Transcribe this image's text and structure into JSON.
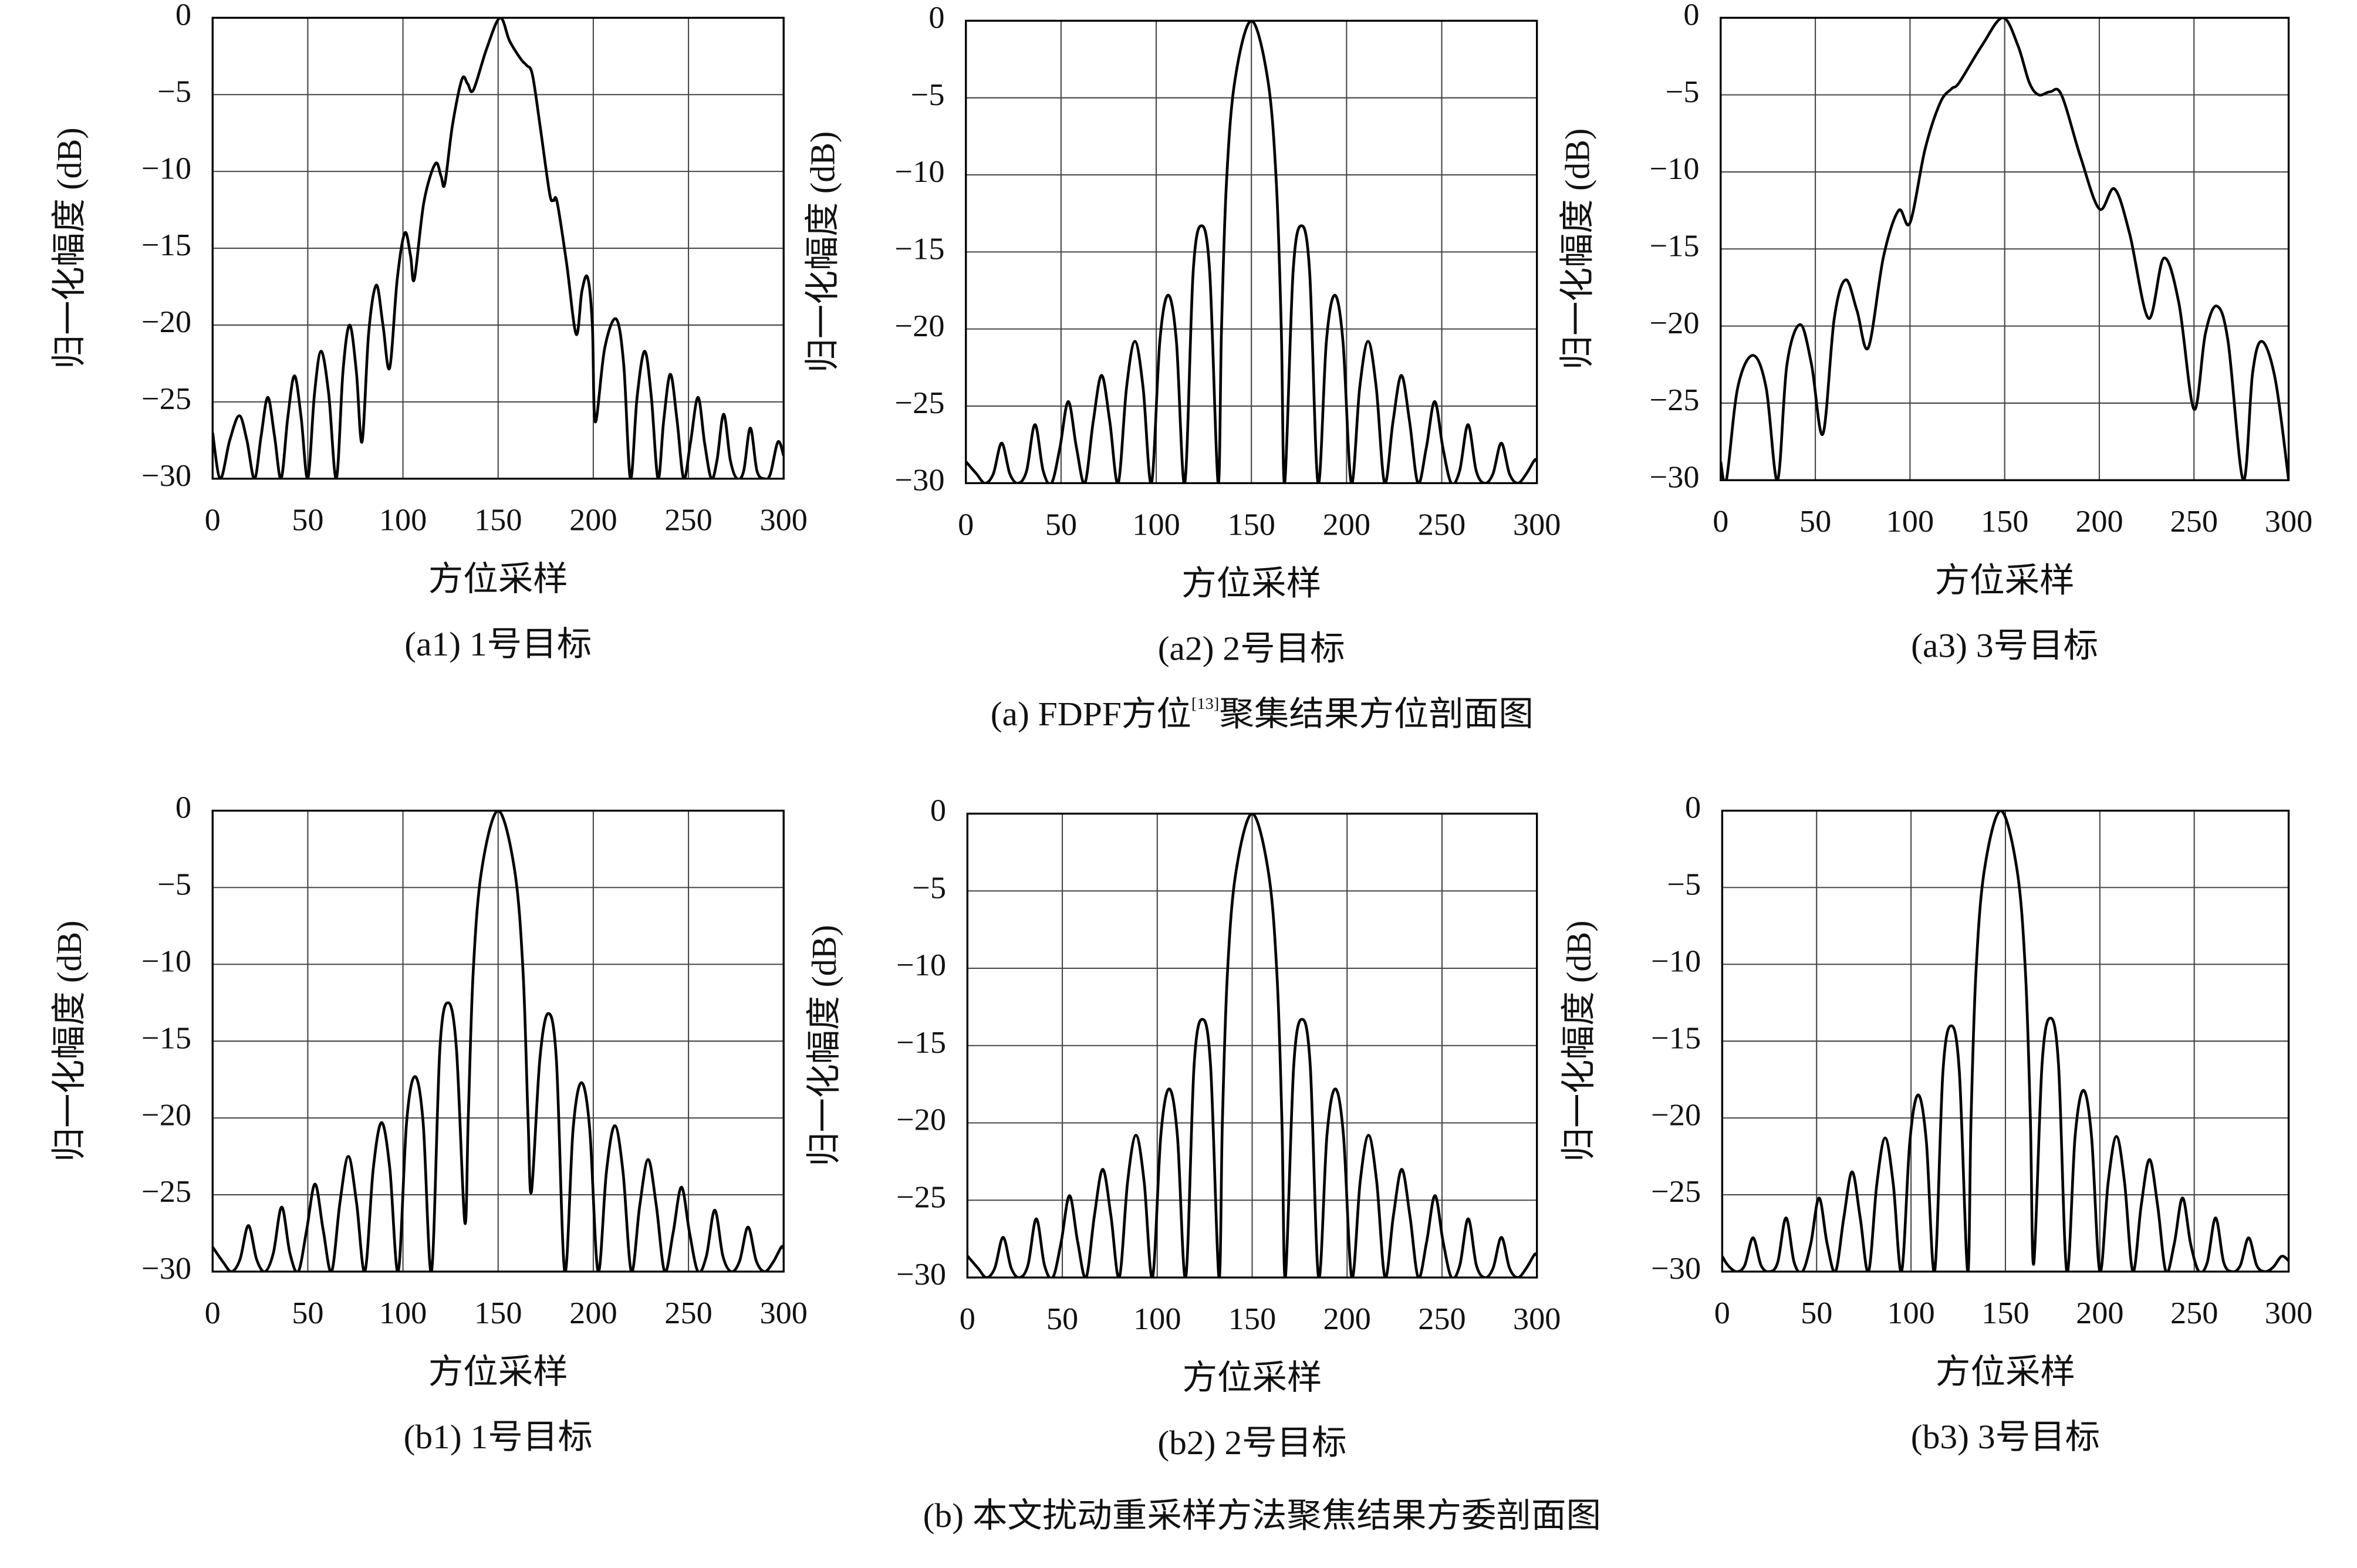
{
  "chart_data": [
    {
      "type": "line",
      "title": "(a1) 1号目标",
      "xlabel": "方位采样",
      "ylabel": "归一化幅度 (dB)",
      "xlim": [
        0,
        300
      ],
      "xticks": [
        0,
        50,
        100,
        150,
        200,
        250,
        300
      ],
      "ylim": [
        -30,
        0
      ],
      "yticks": [
        {
          "value": -30,
          "label": "−30"
        },
        {
          "value": -25,
          "label": "−25"
        },
        {
          "value": -20,
          "label": "−20"
        },
        {
          "value": -15,
          "label": "−15"
        },
        {
          "value": -10,
          "label": "−10"
        },
        {
          "value": -5,
          "label": "−5"
        },
        0
      ],
      "grid": true,
      "x": [
        0,
        4,
        9,
        14,
        18,
        22,
        25.5,
        29,
        32.5,
        36,
        39.5,
        43,
        46.5,
        50,
        53.5,
        57,
        61,
        65,
        68.5,
        72,
        75.5,
        78.5,
        82,
        86,
        89.5,
        93,
        97,
        101,
        104,
        106,
        111,
        117,
        120,
        122,
        126,
        131,
        134,
        137,
        144,
        151,
        156,
        162,
        165,
        168,
        172,
        177,
        179,
        181,
        186,
        191,
        194,
        197,
        199.5,
        201,
        206,
        212,
        216,
        219.5,
        223,
        227,
        230.5,
        234,
        237,
        240.5,
        244,
        247.5,
        251,
        255,
        258.5,
        262,
        265,
        268.5,
        272,
        275.5,
        279,
        282.5,
        286,
        290,
        293,
        297,
        300
      ],
      "series": [
        {
          "color": "#000000",
          "values": [
            -27,
            -30,
            -27.5,
            -25.9,
            -27.5,
            -30,
            -27.2,
            -24.7,
            -27.2,
            -30,
            -26,
            -23.3,
            -26,
            -30,
            -24.5,
            -21.7,
            -24.5,
            -30,
            -23,
            -20,
            -23,
            -27.6,
            -20.5,
            -17.4,
            -20,
            -22.8,
            -17,
            -14,
            -15.5,
            -17,
            -12,
            -9.5,
            -10.3,
            -10.8,
            -7,
            -4,
            -4.3,
            -4.7,
            -2,
            0,
            -1.5,
            -2.7,
            -3.1,
            -3.7,
            -7,
            -11.4,
            -11.9,
            -12,
            -16,
            -20.6,
            -17.8,
            -16.9,
            -20,
            -26.3,
            -21.5,
            -19.6,
            -22.6,
            -30,
            -24.7,
            -21.7,
            -24.7,
            -30,
            -26.2,
            -23.2,
            -26.2,
            -30,
            -27.7,
            -24.7,
            -27.7,
            -30,
            -28.8,
            -25.8,
            -28.8,
            -30,
            -29.5,
            -26.7,
            -29.5,
            -30,
            -29.7,
            -27.6,
            -28.5
          ]
        }
      ]
    },
    {
      "type": "line",
      "title": "(a2) 2号目标",
      "xlabel": "方位采样",
      "ylabel": "归一化幅度 (dB)",
      "xlim": [
        0,
        300
      ],
      "xticks": [
        0,
        50,
        100,
        150,
        200,
        250,
        300
      ],
      "ylim": [
        -30,
        0
      ],
      "yticks": [
        {
          "value": -30,
          "label": "−30"
        },
        {
          "value": -25,
          "label": "−25"
        },
        {
          "value": -20,
          "label": "−20"
        },
        {
          "value": -15,
          "label": "−15"
        },
        {
          "value": -10,
          "label": "−10"
        },
        {
          "value": -5,
          "label": "−5"
        },
        0
      ],
      "grid": true,
      "x": [
        0,
        5.6,
        10,
        14.4,
        18.8,
        23.1,
        27.5,
        31.9,
        36.3,
        40.6,
        45,
        49.4,
        53.8,
        58.1,
        62.5,
        66.9,
        71.3,
        75.6,
        80,
        84.4,
        88.8,
        93.1,
        97.5,
        101.9,
        106.3,
        110.6,
        115,
        119.4,
        123.8,
        128.1,
        132.5,
        134.3,
        136.9,
        141.3,
        150,
        158.7,
        163.1,
        165.7,
        167.5,
        171.9,
        176.3,
        180.6,
        185,
        189.4,
        193.8,
        198.1,
        202.5,
        206.9,
        211.3,
        215.6,
        220,
        224.4,
        228.8,
        233.1,
        237.5,
        241.9,
        246.3,
        250.6,
        255,
        259.4,
        263.8,
        268.1,
        272.5,
        276.9,
        281.3,
        285.6,
        290,
        294.4,
        298.8,
        300
      ],
      "series": [
        {
          "color": "#000000",
          "values": [
            -28.6,
            -29.4,
            -30,
            -29.4,
            -27.4,
            -29.4,
            -30,
            -29.2,
            -26.2,
            -29.2,
            -30,
            -27.7,
            -24.7,
            -27.7,
            -30,
            -26,
            -23,
            -26,
            -30,
            -23.8,
            -20.8,
            -23.8,
            -30,
            -20.8,
            -17.8,
            -20.8,
            -30,
            -16.3,
            -13.3,
            -16.3,
            -30,
            -20,
            -10.5,
            -3.9,
            0,
            -3.9,
            -10.5,
            -20,
            -30,
            -16.3,
            -13.3,
            -16.3,
            -30,
            -20.8,
            -17.8,
            -20.8,
            -30,
            -23.8,
            -20.8,
            -23.8,
            -30,
            -26,
            -23,
            -26,
            -30,
            -27.7,
            -24.7,
            -27.7,
            -30,
            -29.2,
            -26.2,
            -29.2,
            -30,
            -29.4,
            -27.4,
            -29.4,
            -30,
            -29.4,
            -28.5,
            -28.6
          ]
        }
      ]
    },
    {
      "type": "line",
      "title": "(a3) 3号目标",
      "xlabel": "方位采样",
      "ylabel": "归一化幅度 (dB)",
      "xlim": [
        0,
        300
      ],
      "xticks": [
        0,
        50,
        100,
        150,
        200,
        250,
        300
      ],
      "ylim": [
        -30,
        0
      ],
      "yticks": [
        {
          "value": -30,
          "label": "−30"
        },
        {
          "value": -25,
          "label": "−25"
        },
        {
          "value": -20,
          "label": "−20"
        },
        {
          "value": -15,
          "label": "−15"
        },
        {
          "value": -10,
          "label": "−10"
        },
        {
          "value": -5,
          "label": "−5"
        },
        0
      ],
      "grid": true,
      "x": [
        0,
        3,
        9,
        17,
        24,
        30,
        35,
        42,
        48,
        54,
        60,
        66,
        72,
        78,
        86,
        94,
        100,
        108,
        116,
        122,
        126,
        138,
        149,
        157,
        163,
        168,
        174,
        180,
        190,
        200,
        208,
        216,
        226,
        234,
        242,
        250,
        256,
        262,
        268,
        276,
        281,
        286,
        293,
        300
      ],
      "series": [
        {
          "color": "#000000",
          "values": [
            -28.8,
            -30,
            -24,
            -21.9,
            -24,
            -30,
            -22.5,
            -19.9,
            -22.5,
            -27,
            -19.5,
            -17,
            -19,
            -21.4,
            -15.5,
            -12.5,
            -13.3,
            -8.5,
            -5.5,
            -4.6,
            -4.2,
            -1.8,
            0,
            -1.8,
            -4.2,
            -5,
            -4.8,
            -5,
            -9,
            -12.4,
            -11.1,
            -14,
            -19.5,
            -15.6,
            -18.5,
            -25.4,
            -20.5,
            -18.7,
            -21,
            -30,
            -23,
            -21,
            -23.5,
            -30
          ]
        }
      ]
    },
    {
      "type": "line",
      "title": "(b1) 1号目标",
      "xlabel": "方位采样",
      "ylabel": "归一化幅度 (dB)",
      "xlim": [
        0,
        300
      ],
      "xticks": [
        0,
        50,
        100,
        150,
        200,
        250,
        300
      ],
      "ylim": [
        -30,
        0
      ],
      "yticks": [
        {
          "value": -30,
          "label": "−30"
        },
        {
          "value": -25,
          "label": "−25"
        },
        {
          "value": -20,
          "label": "−20"
        },
        {
          "value": -15,
          "label": "−15"
        },
        {
          "value": -10,
          "label": "−10"
        },
        {
          "value": -5,
          "label": "−5"
        },
        0
      ],
      "grid": true,
      "x": [
        0,
        5.6,
        10,
        14.4,
        18.8,
        23.1,
        27.5,
        31.9,
        36.3,
        40.6,
        45,
        49.4,
        53.8,
        58.1,
        62.5,
        66.9,
        71.3,
        75.6,
        80,
        84.4,
        88.8,
        93.1,
        97.5,
        101.9,
        106.3,
        110.6,
        115,
        119.4,
        123.8,
        128.1,
        132.5,
        134.3,
        136.9,
        141.3,
        150,
        158.7,
        163.1,
        165.7,
        167.5,
        171.9,
        176.3,
        180.6,
        185,
        189.4,
        193.8,
        198.1,
        202.5,
        206.9,
        211.3,
        215.6,
        220,
        224.4,
        228.8,
        233.1,
        237.5,
        241.9,
        246.3,
        250.6,
        255,
        259.4,
        263.8,
        268.1,
        272.5,
        276.9,
        281.3,
        285.6,
        290,
        294.4,
        298.8,
        300
      ],
      "series": [
        {
          "color": "#000000",
          "values": [
            -28.4,
            -29.4,
            -30,
            -29.2,
            -27,
            -29.2,
            -30,
            -28.8,
            -25.8,
            -28.8,
            -30,
            -27.3,
            -24.3,
            -27.3,
            -30,
            -25.5,
            -22.5,
            -25.5,
            -30,
            -23.3,
            -20.3,
            -23.3,
            -30,
            -20.3,
            -17.3,
            -20.3,
            -30,
            -15.5,
            -12.5,
            -15.5,
            -26.8,
            -20,
            -10.5,
            -3.9,
            0,
            -3.9,
            -10.5,
            -20,
            -24.8,
            -16.2,
            -13.2,
            -16.2,
            -30,
            -20.7,
            -17.7,
            -20.7,
            -30,
            -23.5,
            -20.5,
            -23.5,
            -30,
            -25.7,
            -22.7,
            -25.7,
            -30,
            -27.5,
            -24.5,
            -27.5,
            -30,
            -29,
            -26,
            -29,
            -30,
            -29.3,
            -27.1,
            -29.3,
            -30,
            -29.4,
            -28.4,
            -28.5
          ]
        }
      ]
    },
    {
      "type": "line",
      "title": "(b2) 2号目标",
      "xlabel": "方位采样",
      "ylabel": "归一化幅度 (dB)",
      "xlim": [
        0,
        300
      ],
      "xticks": [
        0,
        50,
        100,
        150,
        200,
        250,
        300
      ],
      "ylim": [
        -30,
        0
      ],
      "yticks": [
        {
          "value": -30,
          "label": "−30"
        },
        {
          "value": -25,
          "label": "−25"
        },
        {
          "value": -20,
          "label": "−20"
        },
        {
          "value": -15,
          "label": "−15"
        },
        {
          "value": -10,
          "label": "−10"
        },
        {
          "value": -5,
          "label": "−5"
        },
        0
      ],
      "grid": true,
      "x": [
        0,
        5.6,
        10,
        14.4,
        18.8,
        23.1,
        27.5,
        31.9,
        36.3,
        40.6,
        45,
        49.4,
        53.8,
        58.1,
        62.5,
        66.9,
        71.3,
        75.6,
        80,
        84.4,
        88.8,
        93.1,
        97.5,
        101.9,
        106.3,
        110.6,
        115,
        119.4,
        123.8,
        128.1,
        132.5,
        134.3,
        136.9,
        141.3,
        150,
        158.7,
        163.1,
        165.7,
        167.5,
        171.9,
        176.3,
        180.6,
        185,
        189.4,
        193.8,
        198.1,
        202.5,
        206.9,
        211.3,
        215.6,
        220,
        224.4,
        228.8,
        233.1,
        237.5,
        241.9,
        246.3,
        250.6,
        255,
        259.4,
        263.8,
        268.1,
        272.5,
        276.9,
        281.3,
        285.6,
        290,
        294.4,
        298.8,
        300
      ],
      "series": [
        {
          "color": "#000000",
          "values": [
            -28.6,
            -29.4,
            -30,
            -29.4,
            -27.4,
            -29.4,
            -30,
            -29.2,
            -26.2,
            -29.2,
            -30,
            -27.7,
            -24.7,
            -27.7,
            -30,
            -26,
            -23,
            -26,
            -30,
            -23.8,
            -20.8,
            -23.8,
            -30,
            -20.8,
            -17.8,
            -20.8,
            -30,
            -16.3,
            -13.3,
            -16.3,
            -30,
            -20,
            -10.5,
            -3.9,
            0,
            -3.9,
            -10.5,
            -20,
            -30,
            -16.3,
            -13.3,
            -16.3,
            -30,
            -20.8,
            -17.8,
            -20.8,
            -30,
            -23.8,
            -20.8,
            -23.8,
            -30,
            -26,
            -23,
            -26,
            -30,
            -27.7,
            -24.7,
            -27.7,
            -30,
            -29.2,
            -26.2,
            -29.2,
            -30,
            -29.4,
            -27.4,
            -29.4,
            -30,
            -29.4,
            -28.5,
            -28.6
          ]
        }
      ]
    },
    {
      "type": "line",
      "title": "(b3) 3号目标",
      "xlabel": "方位采样",
      "ylabel": "归一化幅度 (dB)",
      "xlim": [
        0,
        300
      ],
      "xticks": [
        0,
        50,
        100,
        150,
        200,
        250,
        300
      ],
      "ylim": [
        -30,
        0
      ],
      "yticks": [
        {
          "value": -30,
          "label": "−30"
        },
        {
          "value": -25,
          "label": "−25"
        },
        {
          "value": -20,
          "label": "−20"
        },
        {
          "value": -15,
          "label": "−15"
        },
        {
          "value": -10,
          "label": "−10"
        },
        {
          "value": -5,
          "label": "−5"
        },
        0
      ],
      "grid": true,
      "x": [
        0,
        3.1,
        7.5,
        11.9,
        16.3,
        20.6,
        25,
        29.4,
        33.8,
        38.1,
        42.5,
        46.9,
        51.3,
        55.6,
        60,
        64.4,
        68.8,
        73.1,
        77.5,
        81.9,
        86.3,
        90.6,
        95,
        99.4,
        103.8,
        108.1,
        112.5,
        116.9,
        121.3,
        125.6,
        130,
        131.8,
        134.4,
        138.8,
        147.5,
        156.2,
        160.6,
        163.2,
        165,
        169.4,
        173.8,
        178.1,
        182.5,
        186.9,
        191.3,
        195.6,
        200,
        204.4,
        208.8,
        213.1,
        217.5,
        221.9,
        226.3,
        230.6,
        235,
        239.4,
        243.8,
        248.1,
        252.5,
        256.9,
        261.3,
        265.6,
        270,
        274.4,
        278.8,
        283.1,
        287.5,
        291.9,
        296.3,
        300
      ],
      "series": [
        {
          "color": "#000000",
          "values": [
            -29,
            -29.6,
            -30,
            -29.6,
            -27.8,
            -29.6,
            -30,
            -29.4,
            -26.5,
            -29.4,
            -30,
            -28.2,
            -25.2,
            -28.2,
            -30,
            -26.5,
            -23.5,
            -26.5,
            -30,
            -24.3,
            -21.3,
            -24.3,
            -30,
            -21.5,
            -18.5,
            -21.5,
            -30,
            -17,
            -14,
            -17,
            -30,
            -20,
            -10.5,
            -3.9,
            0,
            -3.9,
            -10.5,
            -20,
            -29.5,
            -16.5,
            -13.5,
            -16.5,
            -30,
            -21.2,
            -18.2,
            -21.2,
            -30,
            -24.2,
            -21.2,
            -24.2,
            -30,
            -25.7,
            -22.7,
            -25.7,
            -30,
            -28.2,
            -25.2,
            -28.2,
            -30,
            -29.4,
            -26.5,
            -29.4,
            -30,
            -29.6,
            -27.8,
            -29.6,
            -30,
            -29.7,
            -29,
            -29.3
          ]
        }
      ]
    }
  ],
  "captions": [
    {
      "text": "(a) FDPF方位",
      "ref": "[13]",
      "rest": "聚集结果方位剖面图"
    },
    {
      "text": "(b) 本文扰动重采样方法聚焦结果方委剖面图"
    }
  ]
}
